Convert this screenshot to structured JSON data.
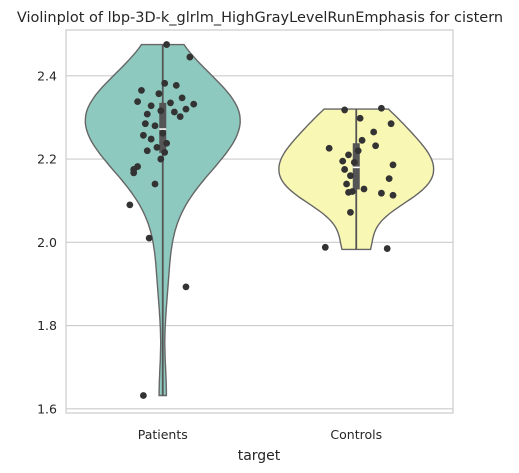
{
  "chart_data": {
    "type": "violin",
    "title": "Violinplot of lbp-3D-k_glrlm_HighGrayLevelRunEmphasis for cistern",
    "xlabel": "target",
    "ylabel": "",
    "ylim": [
      1.59,
      2.51
    ],
    "yticks": [
      1.6,
      1.8,
      2.0,
      2.2,
      2.4
    ],
    "ytick_labels": [
      "1.6",
      "1.8",
      "2.0",
      "2.2",
      "2.4"
    ],
    "grid": true,
    "categories": [
      "Patients",
      "Controls"
    ],
    "colors": [
      "#8dc9bf",
      "#f9f7b4"
    ],
    "series": [
      {
        "name": "Patients",
        "min": 1.632,
        "q1": 2.215,
        "median": 2.272,
        "q3": 2.335,
        "max": 2.475,
        "points": [
          {
            "dx": 0.02,
            "y": 2.475
          },
          {
            "dx": 0.14,
            "y": 2.445
          },
          {
            "dx": 0.01,
            "y": 2.382
          },
          {
            "dx": 0.07,
            "y": 2.377
          },
          {
            "dx": -0.11,
            "y": 2.365
          },
          {
            "dx": -0.02,
            "y": 2.357
          },
          {
            "dx": 0.1,
            "y": 2.347
          },
          {
            "dx": -0.13,
            "y": 2.338
          },
          {
            "dx": 0.04,
            "y": 2.335
          },
          {
            "dx": 0.16,
            "y": 2.332
          },
          {
            "dx": -0.06,
            "y": 2.328
          },
          {
            "dx": 0.12,
            "y": 2.32
          },
          {
            "dx": -0.01,
            "y": 2.316
          },
          {
            "dx": 0.06,
            "y": 2.313
          },
          {
            "dx": -0.08,
            "y": 2.308
          },
          {
            "dx": 0.09,
            "y": 2.302
          },
          {
            "dx": -0.09,
            "y": 2.285
          },
          {
            "dx": -0.04,
            "y": 2.28
          },
          {
            "dx": 0.0,
            "y": 2.262
          },
          {
            "dx": -0.1,
            "y": 2.257
          },
          {
            "dx": -0.06,
            "y": 2.248
          },
          {
            "dx": 0.02,
            "y": 2.238
          },
          {
            "dx": -0.03,
            "y": 2.228
          },
          {
            "dx": -0.08,
            "y": 2.22
          },
          {
            "dx": 0.01,
            "y": 2.216
          },
          {
            "dx": -0.01,
            "y": 2.2
          },
          {
            "dx": -0.13,
            "y": 2.182
          },
          {
            "dx": -0.15,
            "y": 2.175
          },
          {
            "dx": -0.15,
            "y": 2.167
          },
          {
            "dx": -0.04,
            "y": 2.14
          },
          {
            "dx": -0.17,
            "y": 2.09
          },
          {
            "dx": -0.07,
            "y": 2.01
          },
          {
            "dx": 0.12,
            "y": 1.893
          },
          {
            "dx": -0.1,
            "y": 1.632
          }
        ]
      },
      {
        "name": "Controls",
        "min": 1.983,
        "q1": 2.127,
        "median": 2.18,
        "q3": 2.238,
        "max": 2.32,
        "points": [
          {
            "dx": -0.06,
            "y": 2.318
          },
          {
            "dx": 0.13,
            "y": 2.322
          },
          {
            "dx": 0.02,
            "y": 2.298
          },
          {
            "dx": 0.18,
            "y": 2.285
          },
          {
            "dx": 0.09,
            "y": 2.265
          },
          {
            "dx": 0.03,
            "y": 2.245
          },
          {
            "dx": 0.1,
            "y": 2.232
          },
          {
            "dx": -0.14,
            "y": 2.226
          },
          {
            "dx": 0.01,
            "y": 2.22
          },
          {
            "dx": -0.04,
            "y": 2.21
          },
          {
            "dx": -0.07,
            "y": 2.195
          },
          {
            "dx": -0.01,
            "y": 2.192
          },
          {
            "dx": 0.19,
            "y": 2.186
          },
          {
            "dx": -0.06,
            "y": 2.175
          },
          {
            "dx": -0.03,
            "y": 2.16
          },
          {
            "dx": 0.17,
            "y": 2.153
          },
          {
            "dx": -0.05,
            "y": 2.14
          },
          {
            "dx": 0.04,
            "y": 2.128
          },
          {
            "dx": -0.02,
            "y": 2.122
          },
          {
            "dx": -0.04,
            "y": 2.12
          },
          {
            "dx": 0.13,
            "y": 2.118
          },
          {
            "dx": 0.19,
            "y": 2.113
          },
          {
            "dx": -0.03,
            "y": 2.072
          },
          {
            "dx": -0.16,
            "y": 1.988
          },
          {
            "dx": 0.16,
            "y": 1.985
          }
        ]
      }
    ]
  }
}
